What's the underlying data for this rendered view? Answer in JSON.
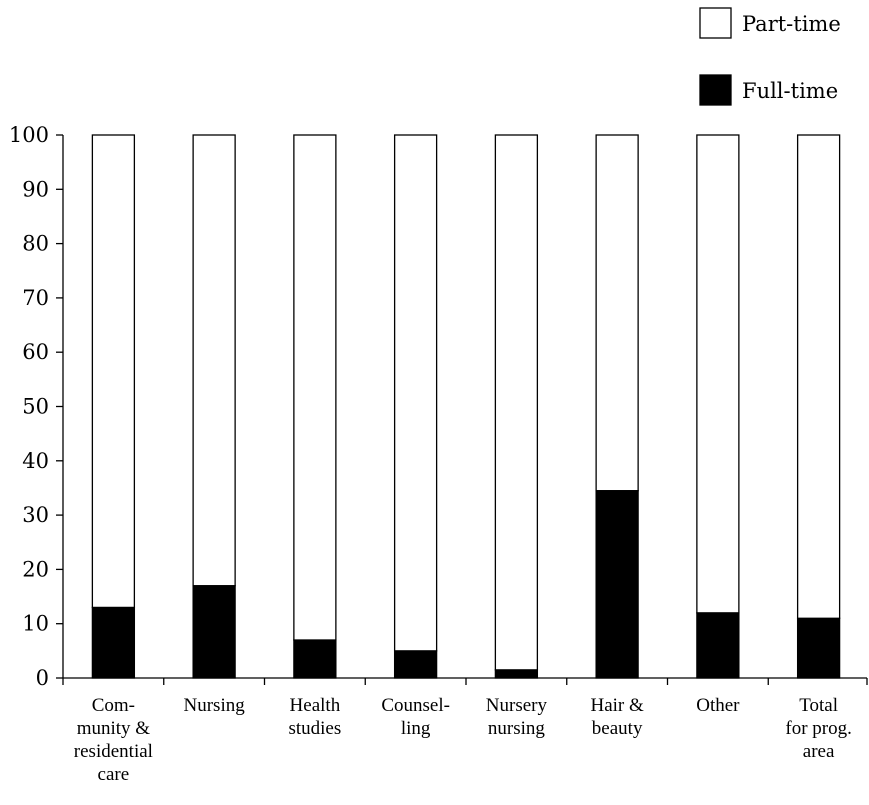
{
  "chart_data": {
    "type": "bar",
    "stacked": true,
    "categories": [
      [
        "Com-",
        "munity &",
        "residential",
        "care"
      ],
      [
        "Nursing"
      ],
      [
        "Health",
        "studies"
      ],
      [
        "Counsel-",
        "ling"
      ],
      [
        "Nursery",
        "nursing"
      ],
      [
        "Hair &",
        "beauty"
      ],
      [
        "Other"
      ],
      [
        "Total",
        "for prog.",
        "area"
      ]
    ],
    "series": [
      {
        "name": "Full-time",
        "color": "#000000",
        "values": [
          13,
          17,
          7,
          5,
          1.5,
          34.5,
          12,
          11
        ]
      },
      {
        "name": "Part-time",
        "color": "#ffffff",
        "values": [
          87,
          83,
          93,
          95,
          98.5,
          65.5,
          88,
          89
        ]
      }
    ],
    "ylim": [
      0,
      100
    ],
    "yticks": [
      0,
      10,
      20,
      30,
      40,
      50,
      60,
      70,
      80,
      90,
      100
    ],
    "legend_position": "top-right",
    "grid": false
  }
}
